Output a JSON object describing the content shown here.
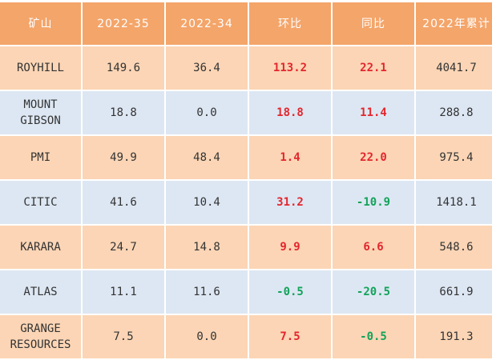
{
  "table": {
    "headers": [
      "矿山",
      "2022-35",
      "2022-34",
      "环比",
      "同比",
      "2022年累计"
    ],
    "rows": [
      {
        "mine": "ROYHILL",
        "w35": "149.6",
        "w34": "36.4",
        "wow": "113.2",
        "yoy": "22.1",
        "ytd": "4041.7"
      },
      {
        "mine": "MOUNT\nGIBSON",
        "w35": "18.8",
        "w34": "0.0",
        "wow": "18.8",
        "yoy": "11.4",
        "ytd": "288.8"
      },
      {
        "mine": "PMI",
        "w35": "49.9",
        "w34": "48.4",
        "wow": "1.4",
        "yoy": "22.0",
        "ytd": "975.4"
      },
      {
        "mine": "CITIC",
        "w35": "41.6",
        "w34": "10.4",
        "wow": "31.2",
        "yoy": "-10.9",
        "ytd": "1418.1"
      },
      {
        "mine": "KARARA",
        "w35": "24.7",
        "w34": "14.8",
        "wow": "9.9",
        "yoy": "6.6",
        "ytd": "548.6"
      },
      {
        "mine": "ATLAS",
        "w35": "11.1",
        "w34": "11.6",
        "wow": "-0.5",
        "yoy": "-20.5",
        "ytd": "661.9"
      },
      {
        "mine": "GRANGE\nRESOURCES",
        "w35": "7.5",
        "w34": "0.0",
        "wow": "7.5",
        "yoy": "-0.5",
        "ytd": "191.3"
      }
    ],
    "colors": {
      "header_bg": "#f4a56a",
      "row_odd_bg": "#fbd5b5",
      "row_even_bg": "#dde7f3",
      "positive": "#e3262d",
      "negative": "#12a35a"
    }
  }
}
